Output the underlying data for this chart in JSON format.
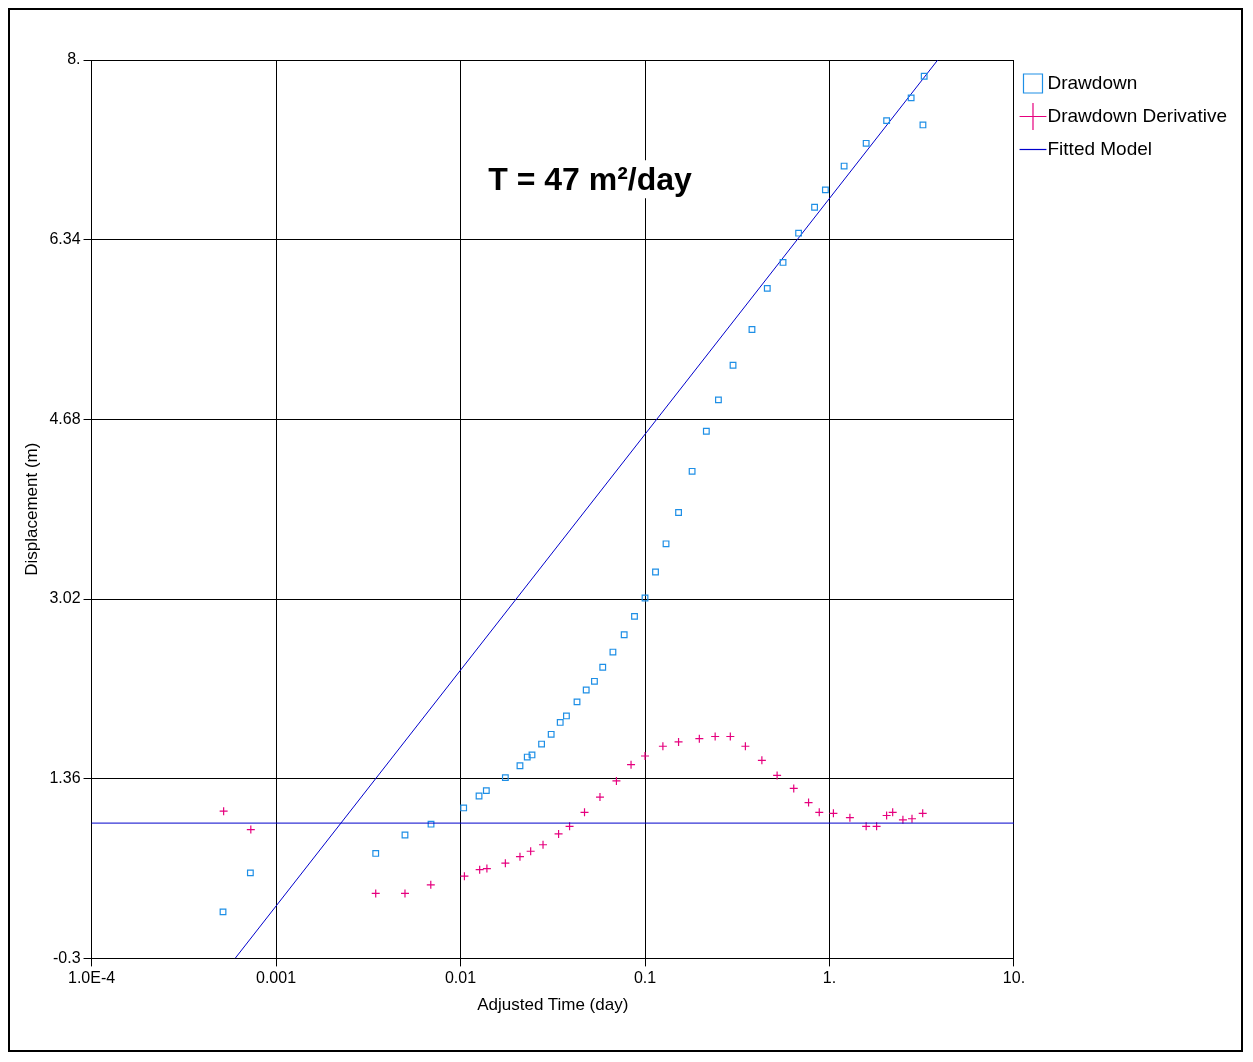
{
  "chart_data": {
    "type": "scatter",
    "xlabel": "Adjusted Time (day)",
    "ylabel": "Displacement (m)",
    "log": "x",
    "xlim": [
      0.0001,
      10
    ],
    "xticks": [
      {
        "value": 0.0001,
        "label": "1.0E-4"
      },
      0.001,
      0.01,
      0.1,
      {
        "value": 1,
        "label": "1."
      },
      {
        "value": 10,
        "label": "10."
      }
    ],
    "ylim": [
      -0.3,
      8
    ],
    "yticks": [
      -0.3,
      1.36,
      3.02,
      4.68,
      6.34,
      {
        "value": 8,
        "label": "8."
      }
    ],
    "grid": true,
    "legend": "top right",
    "annotations": [
      "T = 47 m²/day"
    ],
    "ref_lines": [
      {
        "axis": "y",
        "value": 0.95,
        "color": "#0000cc"
      }
    ],
    "series": [
      {
        "name": "Drawdown",
        "type": "scatter",
        "marker": "square",
        "color": "#1e8fe6",
        "x": [
          0.000516,
          0.000726,
          0.00347,
          0.005,
          0.00692,
          0.0104,
          0.0126,
          0.0138,
          0.0175,
          0.021,
          0.023,
          0.0244,
          0.0275,
          0.031,
          0.0347,
          0.0375,
          0.0428,
          0.048,
          0.0532,
          0.059,
          0.067,
          0.0771,
          0.0877,
          0.1,
          0.114,
          0.13,
          0.152,
          0.18,
          0.215,
          0.25,
          0.3,
          0.38,
          0.46,
          0.56,
          0.68,
          0.83,
          0.95,
          1.2,
          1.58,
          2.04,
          2.77,
          3.26,
          3.21
        ],
        "values": [
          0.13,
          0.49,
          0.67,
          0.84,
          0.94,
          1.09,
          1.2,
          1.25,
          1.37,
          1.48,
          1.56,
          1.58,
          1.68,
          1.77,
          1.88,
          1.94,
          2.07,
          2.18,
          2.26,
          2.39,
          2.53,
          2.69,
          2.86,
          3.03,
          3.27,
          3.53,
          3.82,
          4.2,
          4.57,
          4.86,
          5.18,
          5.51,
          5.89,
          6.13,
          6.4,
          6.64,
          6.8,
          7.02,
          7.23,
          7.44,
          7.65,
          7.85,
          7.4
        ]
      },
      {
        "name": "Drawdown Derivative",
        "type": "scatter",
        "marker": "cross",
        "color": "#e6007e",
        "x": [
          0.00052,
          0.00073,
          0.00347,
          0.005,
          0.0069,
          0.0105,
          0.0127,
          0.0139,
          0.0175,
          0.021,
          0.024,
          0.028,
          0.034,
          0.039,
          0.047,
          0.057,
          0.07,
          0.084,
          0.1,
          0.125,
          0.152,
          0.197,
          0.24,
          0.29,
          0.35,
          0.43,
          0.52,
          0.64,
          0.77,
          0.88,
          1.05,
          1.29,
          1.58,
          1.8,
          2.04,
          2.2,
          2.5,
          2.8,
          3.2
        ],
        "values": [
          1.06,
          0.89,
          0.3,
          0.3,
          0.38,
          0.46,
          0.52,
          0.53,
          0.58,
          0.64,
          0.69,
          0.75,
          0.85,
          0.92,
          1.05,
          1.19,
          1.34,
          1.49,
          1.57,
          1.66,
          1.7,
          1.73,
          1.75,
          1.75,
          1.66,
          1.53,
          1.39,
          1.27,
          1.14,
          1.05,
          1.04,
          1,
          0.92,
          0.92,
          1.02,
          1.05,
          0.98,
          0.99,
          1.04
        ]
      },
      {
        "name": "Fitted Model",
        "type": "line",
        "marker": "none",
        "color": "#0000cc",
        "x": [
          0.0006,
          3.86
        ],
        "values": [
          -0.3,
          8
        ]
      }
    ]
  }
}
